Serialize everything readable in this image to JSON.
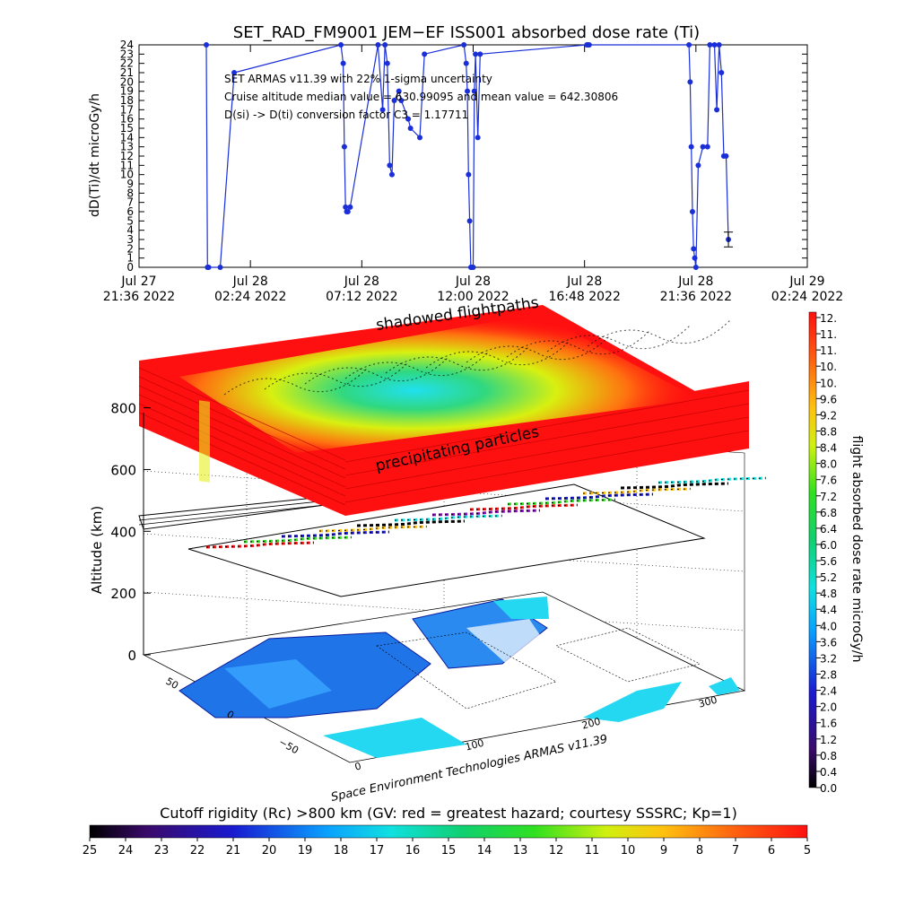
{
  "chart_data": [
    {
      "type": "line",
      "title": "SET_RAD_FM9001  JEM−EF ISS001 absorbed dose rate (Ti)",
      "ylabel": "dD(Ti)/dt microGy/h",
      "ylim": [
        0,
        24
      ],
      "yticks": [
        "0",
        "1",
        "2",
        "3",
        "4",
        "5",
        "6",
        "7",
        "8",
        "9",
        "10",
        "11",
        "12",
        "13",
        "14",
        "15",
        "16",
        "17",
        "18",
        "19",
        "20",
        "21",
        "22",
        "23",
        "24"
      ],
      "xticks": [
        {
          "l1": "Jul 27",
          "l2": "21:36 2022"
        },
        {
          "l1": "Jul 28",
          "l2": "02:24 2022"
        },
        {
          "l1": "Jul 28",
          "l2": "07:12 2022"
        },
        {
          "l1": "Jul 28",
          "l2": "12:00 2022"
        },
        {
          "l1": "Jul 28",
          "l2": "16:48 2022"
        },
        {
          "l1": "Jul 28",
          "l2": "21:36 2022"
        },
        {
          "l1": "Jul 29",
          "l2": "02:24 2022"
        }
      ],
      "annotations": [
        "SET ARMAS v11.39 with 22% 1-sigma uncertainty",
        "Cruise altitude median value = 630.99095 and mean value = 642.30806",
        "D(si) -> D(ti) conversion factor C3 = 1.17711"
      ],
      "series": [
        {
          "color": "#1a2fd8",
          "x_hours": [
            2.9,
            2.95,
            3.0,
            3.5,
            4.1,
            8.7,
            8.8,
            8.85,
            8.9,
            8.95,
            9.0,
            9.1,
            10.3,
            10.5,
            10.6,
            10.7,
            10.8,
            10.9,
            11.0,
            11.2,
            11.3,
            11.6,
            11.7,
            12.1,
            12.3,
            14.0,
            14.1,
            14.15,
            14.2,
            14.25,
            14.3,
            14.35,
            14.4,
            14.45,
            14.5,
            14.6,
            14.7,
            19.3,
            19.35,
            19.4,
            23.7,
            23.75,
            23.8,
            23.85,
            23.9,
            23.95,
            24.0,
            24.1,
            24.3,
            24.5,
            24.6,
            24.8,
            24.9,
            25.0,
            25.1,
            25.2,
            25.3,
            25.4
          ],
          "values": [
            24,
            0,
            0,
            0,
            21,
            24,
            22,
            13,
            6.5,
            6,
            6,
            6.5,
            24,
            17,
            24,
            22,
            11,
            10,
            18,
            19,
            18,
            16,
            15,
            14,
            23,
            24,
            22,
            19,
            10,
            5,
            0,
            0,
            0,
            19,
            23,
            14,
            23,
            24,
            24,
            24,
            24,
            20,
            13,
            6,
            2,
            1,
            0,
            11,
            13,
            13,
            24,
            24,
            17,
            24,
            21,
            12,
            12,
            3
          ]
        }
      ],
      "error_bar": {
        "x_hours": 25.4,
        "value": 3,
        "low": 2.2,
        "high": 3.8
      }
    },
    {
      "type": "3d-surface",
      "xlabel": "",
      "ylabel": "Altitude (km)",
      "zticks": [
        "0",
        "200",
        "400",
        "600",
        "800"
      ],
      "lon_ticks": [
        "0",
        "100",
        "200",
        "300"
      ],
      "lat_ticks": [
        "50",
        "0",
        "−50"
      ],
      "layer_labels": [
        "shadowed flightpaths",
        "precipitating particles"
      ],
      "credit": "Space Environment Technologies ARMAS v11.39",
      "colorbar_label": "flight absorbed dose rate microGy/h",
      "colorbar_ticks": [
        "12.",
        "11.",
        "11.",
        "10.",
        "10.",
        "9.6",
        "9.2",
        "8.8",
        "8.4",
        "8.0",
        "7.6",
        "7.2",
        "6.8",
        "6.4",
        "6.0",
        "5.6",
        "5.2",
        "4.8",
        "4.4",
        "4.0",
        "3.6",
        "3.2",
        "2.8",
        "2.4",
        "2.0",
        "1.6",
        "1.2",
        "0.8",
        "0.4",
        "0.0"
      ]
    },
    {
      "type": "heatmap",
      "title": "Cutoff rigidity (Rc) >800 km (GV: red = greatest hazard; courtesy SSSRC; Kp=1)",
      "ticks": [
        "25",
        "24",
        "23",
        "22",
        "21",
        "20",
        "19",
        "18",
        "17",
        "16",
        "15",
        "14",
        "13",
        "12",
        "11",
        "10",
        "9",
        "8",
        "7",
        "6",
        "5"
      ]
    }
  ]
}
